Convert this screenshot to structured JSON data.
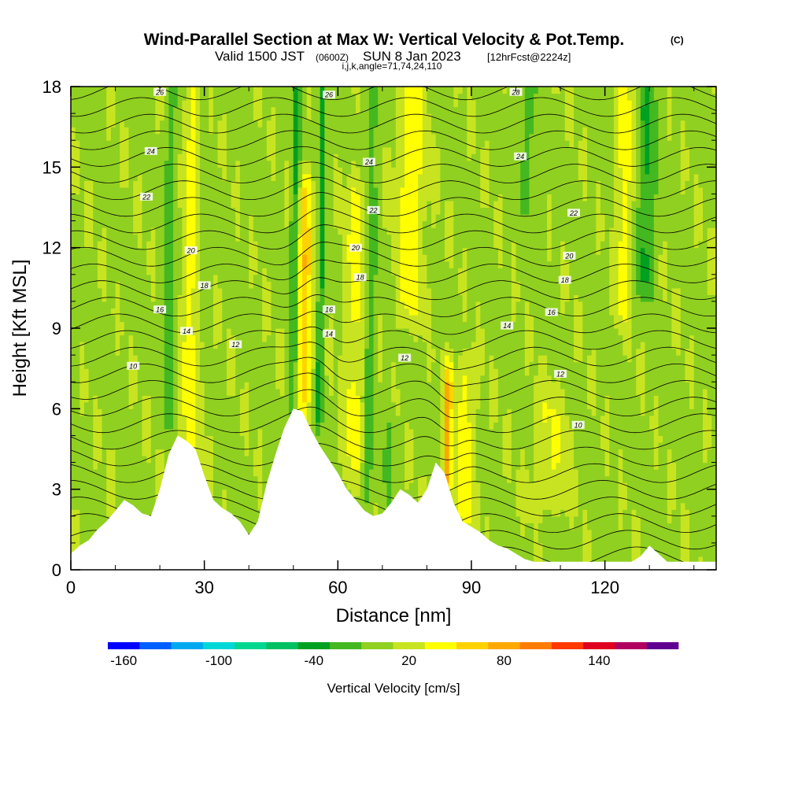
{
  "title": {
    "main": "Wind-Parallel Section at Max W: Vertical Velocity & Pot.Temp.",
    "copyright": "(C)",
    "valid_prefix": "Valid 1500 JST",
    "valid_utc": "(0600Z)",
    "valid_date": "SUN 8 Jan 2023",
    "forecast": "[12hrFcst@2224z]",
    "indices": "i,j,k,angle=71,74,24,110"
  },
  "chart_data": {
    "type": "heatmap",
    "xlabel": "Distance [nm]",
    "ylabel": "Height [Kft MSL]",
    "xlim": [
      0,
      145
    ],
    "ylim": [
      0,
      18
    ],
    "x_ticks": [
      "0",
      "30",
      "60",
      "90",
      "120"
    ],
    "x_tick_values": [
      0,
      30,
      60,
      90,
      120
    ],
    "x_minor_step": 10,
    "y_ticks": [
      "0",
      "3",
      "6",
      "9",
      "12",
      "15",
      "18"
    ],
    "y_tick_values": [
      0,
      3,
      6,
      9,
      12,
      15,
      18
    ],
    "y_minor_step": 1,
    "colorbar": {
      "title": "Vertical Velocity [cm/s]",
      "min": -170,
      "step": 20,
      "colors": [
        "#0000ff",
        "#0060ff",
        "#00a8f0",
        "#00d8d8",
        "#00d890",
        "#00c060",
        "#00a020",
        "#44b820",
        "#90d020",
        "#c8e420",
        "#ffff00",
        "#ffd200",
        "#ffa800",
        "#ff7c00",
        "#ff3800",
        "#e00020",
        "#b00060",
        "#600090"
      ],
      "tick_labels": [
        "-160",
        "-100",
        "-40",
        "20",
        "80",
        "140"
      ],
      "tick_values": [
        -160,
        -100,
        -40,
        20,
        80,
        140
      ]
    },
    "terrain": {
      "x": [
        0,
        2,
        4,
        6,
        8,
        10,
        12,
        14,
        16,
        18,
        20,
        22,
        24,
        26,
        28,
        30,
        32,
        34,
        36,
        38,
        40,
        42,
        44,
        46,
        48,
        50,
        52,
        54,
        56,
        58,
        60,
        62,
        64,
        66,
        68,
        70,
        72,
        74,
        76,
        78,
        80,
        82,
        84,
        86,
        88,
        90,
        92,
        94,
        96,
        98,
        100,
        102,
        104,
        106,
        108,
        110,
        112,
        114,
        116,
        118,
        120,
        122,
        124,
        126,
        128,
        130,
        132,
        134,
        136,
        138,
        140,
        142,
        145
      ],
      "height": [
        0.6,
        0.9,
        1.1,
        1.5,
        1.8,
        2.2,
        2.6,
        2.4,
        2.1,
        2.0,
        3.0,
        4.3,
        5.0,
        4.8,
        4.5,
        3.5,
        2.6,
        2.3,
        2.1,
        1.8,
        1.3,
        1.8,
        3.2,
        4.3,
        5.3,
        6.0,
        5.9,
        5.2,
        4.6,
        4.1,
        3.6,
        3.0,
        2.6,
        2.2,
        2.0,
        2.1,
        2.5,
        3.0,
        2.8,
        2.5,
        3.0,
        4.0,
        3.6,
        2.5,
        1.8,
        1.6,
        1.4,
        1.1,
        0.9,
        0.8,
        0.6,
        0.4,
        0.3,
        0.3,
        0.3,
        0.3,
        0.3,
        0.3,
        0.3,
        0.3,
        0.3,
        0.3,
        0.3,
        0.3,
        0.5,
        0.9,
        0.6,
        0.3,
        0.3,
        0.3,
        0.3,
        0.3,
        0.3
      ]
    },
    "updrafts": [
      {
        "x": 27,
        "w": 2.2,
        "amp": 32,
        "z0": 3.5,
        "z1": 18
      },
      {
        "x": 52.5,
        "w": 1.4,
        "amp": 60,
        "z0": 6.5,
        "z1": 14
      },
      {
        "x": 64,
        "w": 2.4,
        "amp": 30,
        "z0": 4,
        "z1": 14
      },
      {
        "x": 76,
        "w": 3,
        "amp": 35,
        "z0": 10,
        "z1": 18
      },
      {
        "x": 85,
        "w": 1,
        "amp": 70,
        "z0": 3,
        "z1": 7
      },
      {
        "x": 89,
        "w": 2,
        "amp": 35,
        "z0": 2,
        "z1": 7
      },
      {
        "x": 108,
        "w": 4,
        "amp": 22,
        "z0": 3,
        "z1": 6
      },
      {
        "x": 124,
        "w": 1.6,
        "amp": 35,
        "z0": 10,
        "z1": 18
      }
    ],
    "downdrafts": [
      {
        "x": 22,
        "w": 1.2,
        "amp": -30,
        "z0": 6,
        "z1": 18
      },
      {
        "x": 29,
        "w": 1.0,
        "amp": -22,
        "z0": 10,
        "z1": 18
      },
      {
        "x": 50,
        "w": 1.0,
        "amp": -38,
        "z0": 6,
        "z1": 18
      },
      {
        "x": 56,
        "w": 0.7,
        "amp": -48,
        "z0": 6,
        "z1": 18
      },
      {
        "x": 67,
        "w": 1.4,
        "amp": -30,
        "z0": 3,
        "z1": 18
      },
      {
        "x": 72,
        "w": 1.0,
        "amp": -30,
        "z0": 2,
        "z1": 5
      },
      {
        "x": 102,
        "w": 3,
        "amp": -20,
        "z0": 14,
        "z1": 18
      },
      {
        "x": 129,
        "w": 2,
        "amp": -40,
        "z0": 11,
        "z1": 18
      }
    ],
    "contours": {
      "variable": "Pot.Temp.",
      "levels": [
        10,
        12,
        14,
        16,
        18,
        20,
        22,
        24,
        26
      ],
      "labels": [
        {
          "text": "10",
          "x": 14,
          "y": 7.6
        },
        {
          "text": "12",
          "x": 37,
          "y": 8.4
        },
        {
          "text": "14",
          "x": 26,
          "y": 8.9
        },
        {
          "text": "16",
          "x": 20,
          "y": 9.7
        },
        {
          "text": "18",
          "x": 30,
          "y": 10.6
        },
        {
          "text": "20",
          "x": 27,
          "y": 11.9
        },
        {
          "text": "22",
          "x": 17,
          "y": 13.9
        },
        {
          "text": "24",
          "x": 18,
          "y": 15.6
        },
        {
          "text": "26",
          "x": 20,
          "y": 17.8
        },
        {
          "text": "26",
          "x": 58,
          "y": 17.7
        },
        {
          "text": "24",
          "x": 67,
          "y": 15.2
        },
        {
          "text": "22",
          "x": 68,
          "y": 13.4
        },
        {
          "text": "20",
          "x": 64,
          "y": 12.0
        },
        {
          "text": "18",
          "x": 65,
          "y": 10.9
        },
        {
          "text": "16",
          "x": 58,
          "y": 9.7
        },
        {
          "text": "14",
          "x": 58,
          "y": 8.8
        },
        {
          "text": "12",
          "x": 75,
          "y": 7.9
        },
        {
          "text": "28",
          "x": 100,
          "y": 17.8
        },
        {
          "text": "24",
          "x": 101,
          "y": 15.4
        },
        {
          "text": "22",
          "x": 113,
          "y": 13.3
        },
        {
          "text": "20",
          "x": 112,
          "y": 11.7
        },
        {
          "text": "18",
          "x": 111,
          "y": 10.8
        },
        {
          "text": "16",
          "x": 108,
          "y": 9.6
        },
        {
          "text": "14",
          "x": 98,
          "y": 9.1
        },
        {
          "text": "12",
          "x": 110,
          "y": 7.3
        },
        {
          "text": "10",
          "x": 114,
          "y": 5.4
        }
      ]
    }
  }
}
